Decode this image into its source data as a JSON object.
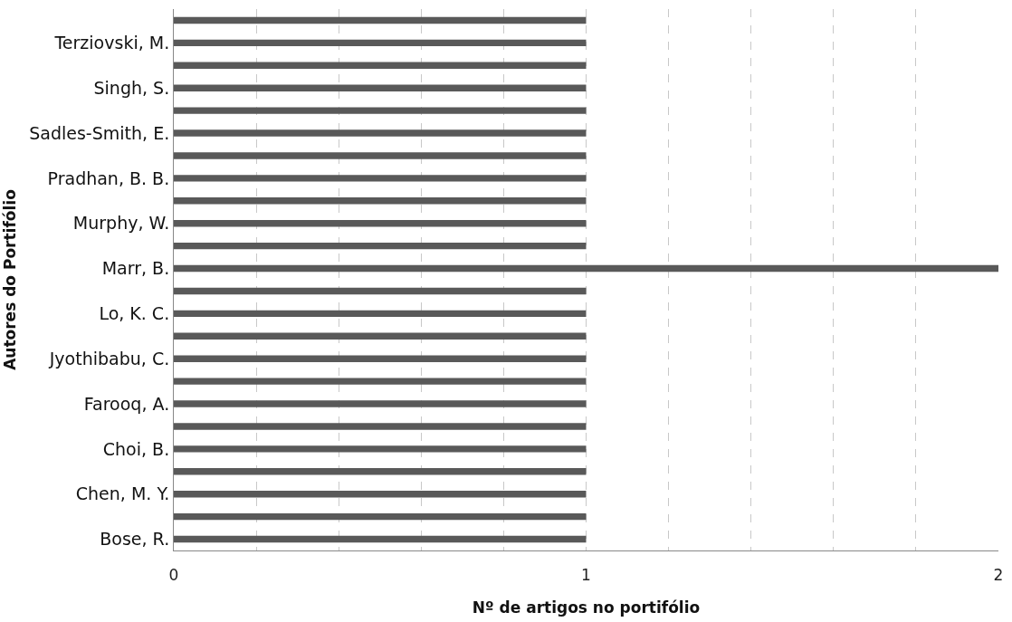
{
  "chart_data": {
    "type": "bar",
    "orientation": "horizontal",
    "xlabel": "Nº de artigos no portifólio",
    "ylabel": "Autores do Portifólio",
    "categories": [
      null,
      "Terziovski, M.",
      null,
      "Singh, S.",
      null,
      "Sadles-Smith, E.",
      null,
      "Pradhan, B. B.",
      null,
      "Murphy, W.",
      null,
      "Marr, B.",
      null,
      "Lo, K. C.",
      null,
      "Jyothibabu, C.",
      null,
      "Farooq, A.",
      null,
      "Choi, B.",
      null,
      "Chen, M. Y.",
      null,
      "Bose, R."
    ],
    "values": [
      1,
      1,
      1,
      1,
      1,
      1,
      1,
      1,
      1,
      1,
      1,
      2,
      1,
      1,
      1,
      1,
      1,
      1,
      1,
      1,
      1,
      1,
      1,
      1
    ],
    "color": "#595959",
    "xlim": [
      0,
      2
    ],
    "xticks": [
      0,
      {
        "value": 0.2,
        "label": null
      },
      {
        "value": 0.4,
        "label": null
      },
      {
        "value": 0.6,
        "label": null
      },
      {
        "value": 0.8,
        "label": null
      },
      1,
      {
        "value": 1.2,
        "label": null
      },
      {
        "value": 1.4,
        "label": null
      },
      {
        "value": 1.6,
        "label": null
      },
      {
        "value": 1.8,
        "label": null
      },
      2
    ],
    "grid": "x"
  }
}
